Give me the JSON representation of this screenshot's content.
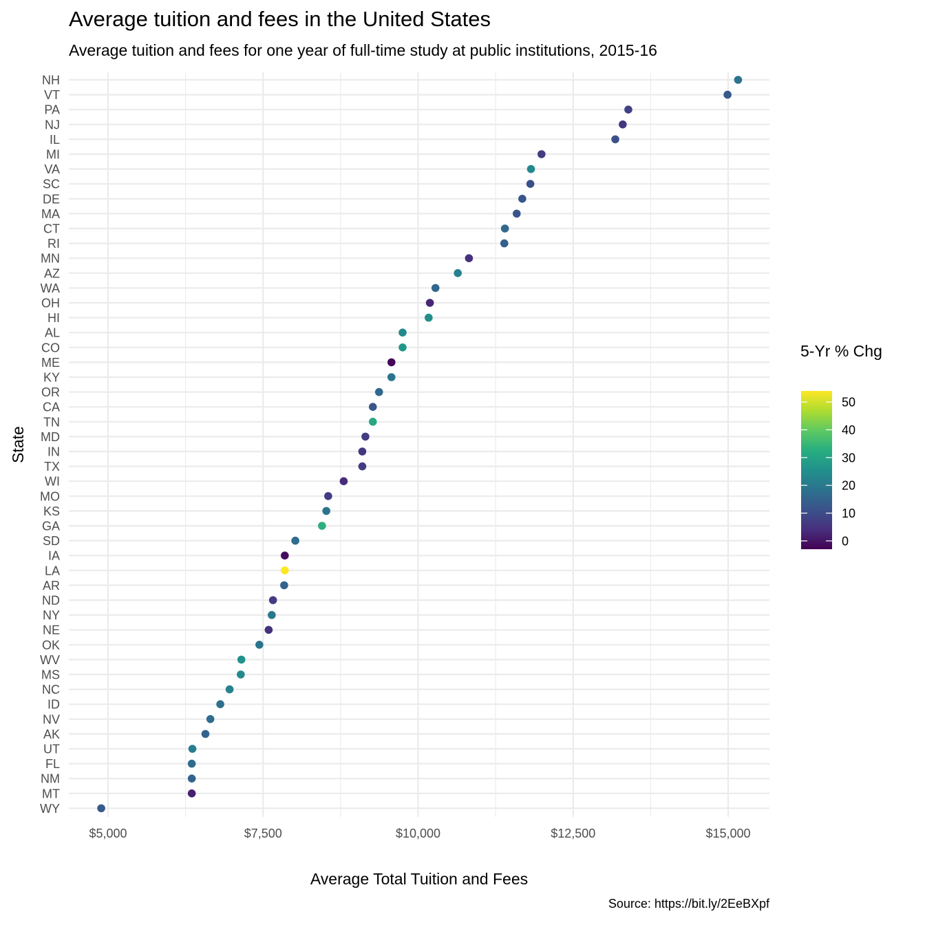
{
  "title": "Average tuition and fees in the United States",
  "subtitle": "Average tuition and fees for one year of full-time study at public institutions, 2015-16",
  "caption": "Source: https://bit.ly/2EeBXpf",
  "chart_data": {
    "type": "scatter",
    "xlabel": "Average Total Tuition and Fees",
    "ylabel": "State",
    "xlim": [
      4550,
      15700
    ],
    "x_ticks": [
      5000,
      7500,
      10000,
      12500,
      15000
    ],
    "x_tick_labels": [
      "$5,000",
      "$7,500",
      "$10,000",
      "$12,500",
      "$15,000"
    ],
    "grid": true,
    "legend": {
      "title": "5-Yr % Chg",
      "placement": "right",
      "min": -3,
      "max": 54,
      "ticks": [
        0,
        10,
        20,
        30,
        40,
        50
      ]
    },
    "colormap": "viridis",
    "points": [
      {
        "state": "NH",
        "value": 15160,
        "pct_change": 19
      },
      {
        "state": "VT",
        "value": 14990,
        "pct_change": 13
      },
      {
        "state": "PA",
        "value": 13390,
        "pct_change": 8
      },
      {
        "state": "NJ",
        "value": 13300,
        "pct_change": 6
      },
      {
        "state": "IL",
        "value": 13180,
        "pct_change": 11
      },
      {
        "state": "MI",
        "value": 11990,
        "pct_change": 7
      },
      {
        "state": "VA",
        "value": 11820,
        "pct_change": 24
      },
      {
        "state": "SC",
        "value": 11810,
        "pct_change": 11
      },
      {
        "state": "DE",
        "value": 11680,
        "pct_change": 12
      },
      {
        "state": "MA",
        "value": 11590,
        "pct_change": 12
      },
      {
        "state": "CT",
        "value": 11400,
        "pct_change": 16
      },
      {
        "state": "RI",
        "value": 11390,
        "pct_change": 14
      },
      {
        "state": "MN",
        "value": 10820,
        "pct_change": 5
      },
      {
        "state": "AZ",
        "value": 10640,
        "pct_change": 22
      },
      {
        "state": "WA",
        "value": 10280,
        "pct_change": 16
      },
      {
        "state": "OH",
        "value": 10190,
        "pct_change": 3
      },
      {
        "state": "HI",
        "value": 10170,
        "pct_change": 25
      },
      {
        "state": "AL",
        "value": 9750,
        "pct_change": 24
      },
      {
        "state": "CO",
        "value": 9750,
        "pct_change": 27
      },
      {
        "state": "ME",
        "value": 9570,
        "pct_change": -2
      },
      {
        "state": "KY",
        "value": 9570,
        "pct_change": 19
      },
      {
        "state": "OR",
        "value": 9370,
        "pct_change": 16
      },
      {
        "state": "CA",
        "value": 9270,
        "pct_change": 12
      },
      {
        "state": "TN",
        "value": 9270,
        "pct_change": 31
      },
      {
        "state": "MD",
        "value": 9150,
        "pct_change": 7
      },
      {
        "state": "IN",
        "value": 9100,
        "pct_change": 6
      },
      {
        "state": "TX",
        "value": 9100,
        "pct_change": 7
      },
      {
        "state": "WI",
        "value": 8800,
        "pct_change": 4
      },
      {
        "state": "MO",
        "value": 8550,
        "pct_change": 7
      },
      {
        "state": "KS",
        "value": 8520,
        "pct_change": 19
      },
      {
        "state": "GA",
        "value": 8450,
        "pct_change": 33
      },
      {
        "state": "SD",
        "value": 8020,
        "pct_change": 17
      },
      {
        "state": "IA",
        "value": 7850,
        "pct_change": -1
      },
      {
        "state": "LA",
        "value": 7850,
        "pct_change": 54
      },
      {
        "state": "AR",
        "value": 7840,
        "pct_change": 15
      },
      {
        "state": "ND",
        "value": 7660,
        "pct_change": 7
      },
      {
        "state": "NY",
        "value": 7640,
        "pct_change": 20
      },
      {
        "state": "NE",
        "value": 7590,
        "pct_change": 5
      },
      {
        "state": "OK",
        "value": 7440,
        "pct_change": 19
      },
      {
        "state": "WV",
        "value": 7150,
        "pct_change": 26
      },
      {
        "state": "MS",
        "value": 7140,
        "pct_change": 24
      },
      {
        "state": "NC",
        "value": 6960,
        "pct_change": 22
      },
      {
        "state": "ID",
        "value": 6810,
        "pct_change": 18
      },
      {
        "state": "NV",
        "value": 6650,
        "pct_change": 17
      },
      {
        "state": "AK",
        "value": 6570,
        "pct_change": 15
      },
      {
        "state": "UT",
        "value": 6360,
        "pct_change": 21
      },
      {
        "state": "FL",
        "value": 6350,
        "pct_change": 17
      },
      {
        "state": "NM",
        "value": 6350,
        "pct_change": 15
      },
      {
        "state": "MT",
        "value": 6350,
        "pct_change": 2
      },
      {
        "state": "WY",
        "value": 4890,
        "pct_change": 13
      }
    ]
  }
}
